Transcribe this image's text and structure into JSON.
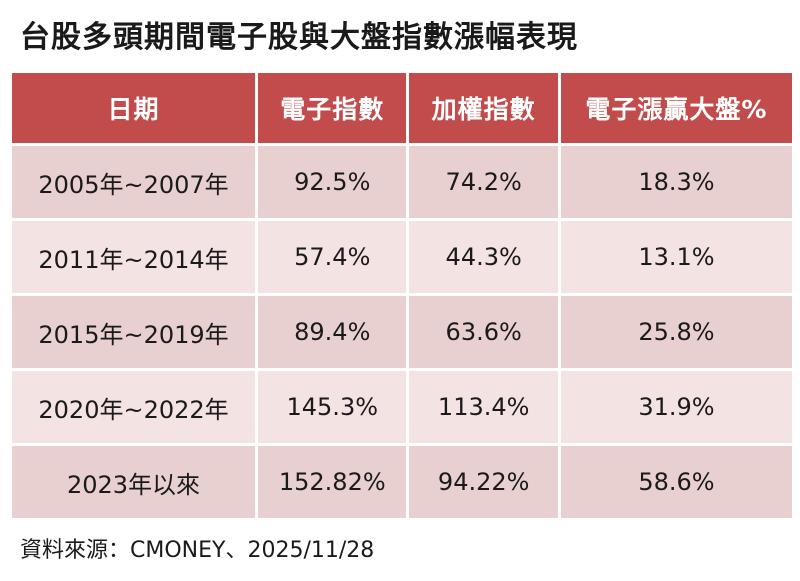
{
  "title": "台股多頭期間電子股與大盤指數漲幅表現",
  "table": {
    "headers": [
      "日期",
      "電子指數",
      "加權指數",
      "電子漲贏大盤%"
    ],
    "rows": [
      [
        "2005年~2007年",
        "92.5%",
        "74.2%",
        "18.3%"
      ],
      [
        "2011年~2014年",
        "57.4%",
        "44.3%",
        "13.1%"
      ],
      [
        "2015年~2019年",
        "89.4%",
        "63.6%",
        "25.8%"
      ],
      [
        "2020年~2022年",
        "145.3%",
        "113.4%",
        "31.9%"
      ],
      [
        "2023年以來",
        "152.82%",
        "94.22%",
        "58.6%"
      ]
    ]
  },
  "colors": {
    "header_bg": "#c24b4b",
    "row_odd_bg": "#e8cfd0",
    "row_even_bg": "#f3e3e3"
  },
  "source": "資料來源：CMONEY、2025/11/28"
}
